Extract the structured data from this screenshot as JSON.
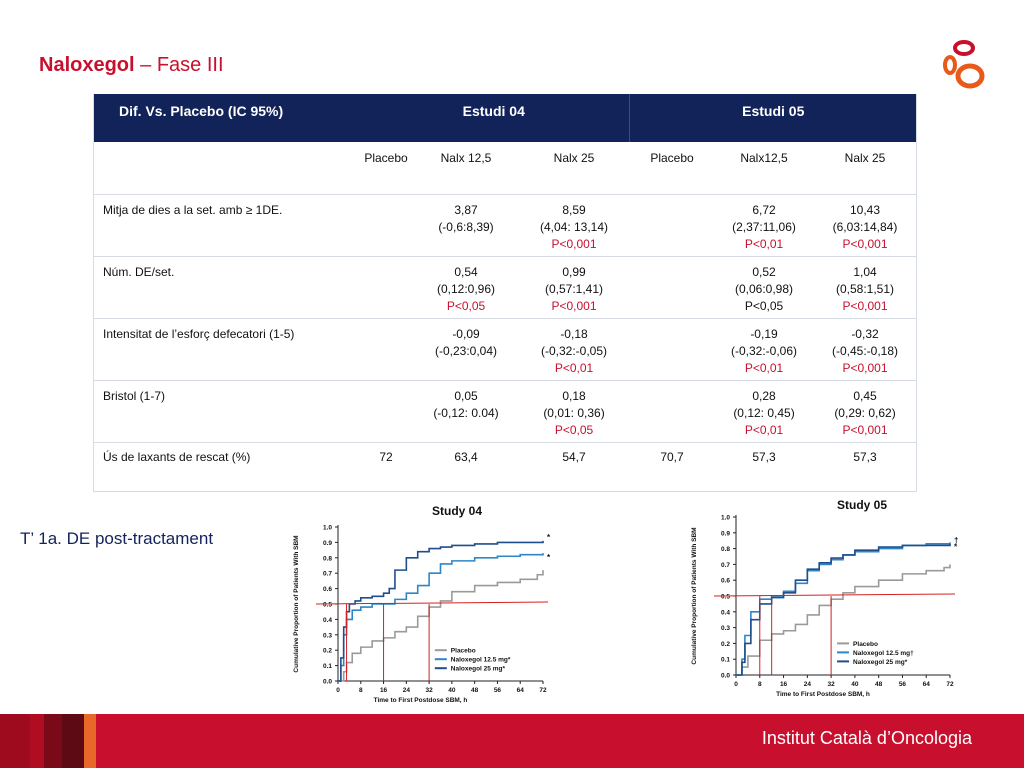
{
  "slide": {
    "title_bold": "Naloxegol",
    "title_rest": " – Fase III",
    "left_label": "T’ 1a. DE post-tractament",
    "footer_text": "Institut Català d’Oncologia"
  },
  "table": {
    "header": {
      "col0": "Dif. Vs. Placebo (IC 95%)",
      "study1": "Estudi 04",
      "study2": "Estudi 05"
    },
    "subheader": [
      "Placebo",
      "Nalx 12,5",
      "Nalx 25",
      "Placebo",
      "Nalx12,5",
      "Nalx 25"
    ],
    "rows": [
      {
        "label": "Mitja de dies a la set. amb ≥ 1DE.",
        "cells": [
          {
            "l1": "",
            "l2": "",
            "p": "",
            "p_red": false
          },
          {
            "l1": "3,87",
            "l2": "(-0,6:8,39)",
            "p": "",
            "p_red": false
          },
          {
            "l1": "8,59",
            "l2": "(4,04: 13,14)",
            "p": "P<0,001",
            "p_red": true
          },
          {
            "l1": "",
            "l2": "",
            "p": "",
            "p_red": false
          },
          {
            "l1": "6,72",
            "l2": "(2,37:11,06)",
            "p": "P<0,01",
            "p_red": true
          },
          {
            "l1": "10,43",
            "l2": "(6,03:14,84)",
            "p": "P<0,001",
            "p_red": true
          }
        ]
      },
      {
        "label": "Núm. DE/set.",
        "cells": [
          {
            "l1": "",
            "l2": "",
            "p": "",
            "p_red": false
          },
          {
            "l1": "0,54",
            "l2": "(0,12:0,96)",
            "p": "P<0,05",
            "p_red": true
          },
          {
            "l1": "0,99",
            "l2": "(0,57:1,41)",
            "p": "P<0,001",
            "p_red": true
          },
          {
            "l1": "",
            "l2": "",
            "p": "",
            "p_red": false
          },
          {
            "l1": "0,52",
            "l2": "(0,06:0,98)",
            "p": "P<0,05",
            "p_red": false
          },
          {
            "l1": "1,04",
            "l2": "(0,58:1,51)",
            "p": "P<0,001",
            "p_red": true
          }
        ]
      },
      {
        "label": "Intensitat de l’esforç defecatori (1-5)",
        "cells": [
          {
            "l1": "",
            "l2": "",
            "p": "",
            "p_red": false
          },
          {
            "l1": "-0,09",
            "l2": "(-0,23:0,04)",
            "p": "",
            "p_red": false
          },
          {
            "l1": "-0,18",
            "l2": "(-0,32:-0,05)",
            "p": "P<0,01",
            "p_red": true
          },
          {
            "l1": "",
            "l2": "",
            "p": "",
            "p_red": false
          },
          {
            "l1": "-0,19",
            "l2": "(-0,32:-0,06)",
            "p": "P<0,01",
            "p_red": true
          },
          {
            "l1": "-0,32",
            "l2": "(-0,45:-0,18)",
            "p": "P<0,001",
            "p_red": true
          }
        ]
      },
      {
        "label": "Bristol (1-7)",
        "cells": [
          {
            "l1": "",
            "l2": "",
            "p": "",
            "p_red": false
          },
          {
            "l1": "0,05",
            "l2": "(-0,12: 0.04)",
            "p": "",
            "p_red": false
          },
          {
            "l1": "0,18",
            "l2": "(0,01: 0,36)",
            "p": "P<0,05",
            "p_red": true
          },
          {
            "l1": "",
            "l2": "",
            "p": "",
            "p_red": false
          },
          {
            "l1": "0,28",
            "l2": "(0,12: 0,45)",
            "p": "P<0,01",
            "p_red": true
          },
          {
            "l1": "0,45",
            "l2": "(0,29: 0,62)",
            "p": "P<0,001",
            "p_red": true
          }
        ]
      },
      {
        "label": "Ús de laxants de rescat  (%)",
        "cells": [
          {
            "l1": "72",
            "l2": "",
            "p": "",
            "p_red": false
          },
          {
            "l1": "63,4",
            "l2": "",
            "p": "",
            "p_red": false
          },
          {
            "l1": "54,7",
            "l2": "",
            "p": "",
            "p_red": false
          },
          {
            "l1": "70,7",
            "l2": "",
            "p": "",
            "p_red": false
          },
          {
            "l1": "57,3",
            "l2": "",
            "p": "",
            "p_red": false
          },
          {
            "l1": "57,3",
            "l2": "",
            "p": "",
            "p_red": false
          }
        ]
      }
    ]
  },
  "colors": {
    "accent_red": "#c8102e",
    "header_navy": "#12235a",
    "placebo": "#9a9a9a",
    "nal12": "#2f86c6",
    "nal25": "#1f4e8c",
    "median_line": "#d62020"
  },
  "chart_data": [
    {
      "type": "line",
      "title": "Study 04",
      "xlabel": "Time to First Postdose SBM, h",
      "ylabel": "Cumulative Proportion of Patients With SBM",
      "xlim": [
        0,
        72
      ],
      "ylim": [
        0,
        1.0
      ],
      "x_ticks": [
        0,
        8,
        16,
        24,
        32,
        40,
        48,
        56,
        64,
        72
      ],
      "y_ticks": [
        "0.0",
        "0.1",
        "0.2",
        "0.3",
        "0.4",
        "0.5",
        "0.6",
        "0.7",
        "0.8",
        "0.9",
        "1.0"
      ],
      "legend": [
        "Placebo",
        "Naloxegol 12.5 mg*",
        "Naloxegol 25 mg*"
      ],
      "legend_position": "bottom-right",
      "end_markers": [
        "*",
        "*"
      ],
      "series": [
        {
          "name": "Placebo",
          "x": [
            0,
            2,
            3,
            5,
            8,
            12,
            16,
            20,
            24,
            28,
            32,
            36,
            40,
            48,
            56,
            64,
            70,
            72
          ],
          "y": [
            0,
            0.06,
            0.12,
            0.18,
            0.22,
            0.26,
            0.28,
            0.32,
            0.35,
            0.42,
            0.48,
            0.52,
            0.58,
            0.62,
            0.64,
            0.66,
            0.69,
            0.72
          ]
        },
        {
          "name": "Naloxegol 12.5 mg*",
          "x": [
            0,
            1,
            2,
            3,
            5,
            8,
            12,
            16,
            20,
            24,
            28,
            32,
            36,
            40,
            48,
            56,
            64,
            72
          ],
          "y": [
            0,
            0.1,
            0.3,
            0.4,
            0.46,
            0.48,
            0.5,
            0.5,
            0.53,
            0.57,
            0.62,
            0.7,
            0.76,
            0.78,
            0.8,
            0.81,
            0.82,
            0.83
          ]
        },
        {
          "name": "Naloxegol 25 mg*",
          "x": [
            0,
            1,
            2,
            3,
            4,
            6,
            8,
            12,
            16,
            18,
            20,
            24,
            28,
            32,
            36,
            40,
            48,
            56,
            64,
            72
          ],
          "y": [
            0,
            0.15,
            0.35,
            0.45,
            0.5,
            0.52,
            0.54,
            0.55,
            0.57,
            0.6,
            0.72,
            0.8,
            0.84,
            0.86,
            0.87,
            0.88,
            0.89,
            0.9,
            0.9,
            0.91
          ]
        }
      ],
      "median_y": 0.5,
      "median_x": [
        3,
        16,
        32
      ]
    },
    {
      "type": "line",
      "title": "Study 05",
      "xlabel": "Time to First Postdose SBM, h",
      "ylabel": "Cumulative Proportion of Patients With SBM",
      "xlim": [
        0,
        72
      ],
      "ylim": [
        0,
        1.0
      ],
      "x_ticks": [
        0,
        8,
        16,
        24,
        32,
        40,
        48,
        56,
        64,
        72
      ],
      "y_ticks": [
        "0.0",
        "0.1",
        "0.2",
        "0.3",
        "0.4",
        "0.5",
        "0.6",
        "0.7",
        "0.8",
        "0.9",
        "1.0"
      ],
      "legend": [
        "Placebo",
        "Naloxegol 12.5 mg†",
        "Naloxegol 25 mg*"
      ],
      "legend_position": "bottom-right",
      "end_markers": [
        "†",
        "*"
      ],
      "series": [
        {
          "name": "Placebo",
          "x": [
            0,
            2,
            4,
            8,
            12,
            16,
            20,
            24,
            28,
            32,
            36,
            40,
            48,
            56,
            64,
            70,
            72
          ],
          "y": [
            0,
            0.05,
            0.12,
            0.22,
            0.26,
            0.28,
            0.32,
            0.38,
            0.44,
            0.48,
            0.52,
            0.56,
            0.6,
            0.64,
            0.66,
            0.68,
            0.7
          ]
        },
        {
          "name": "Naloxegol 12.5 mg†",
          "x": [
            0,
            2,
            3,
            5,
            8,
            12,
            16,
            20,
            24,
            28,
            32,
            36,
            40,
            48,
            56,
            64,
            72
          ],
          "y": [
            0,
            0.1,
            0.25,
            0.4,
            0.48,
            0.5,
            0.53,
            0.58,
            0.66,
            0.7,
            0.73,
            0.76,
            0.78,
            0.8,
            0.82,
            0.83,
            0.84
          ]
        },
        {
          "name": "Naloxegol 25 mg*",
          "x": [
            0,
            2,
            3,
            5,
            8,
            12,
            16,
            20,
            24,
            28,
            32,
            36,
            40,
            48,
            56,
            64,
            72
          ],
          "y": [
            0,
            0.08,
            0.2,
            0.35,
            0.45,
            0.49,
            0.52,
            0.6,
            0.67,
            0.71,
            0.74,
            0.76,
            0.79,
            0.81,
            0.82,
            0.82,
            0.83
          ]
        }
      ],
      "median_y": 0.5,
      "median_x": [
        8,
        12,
        32
      ]
    }
  ]
}
